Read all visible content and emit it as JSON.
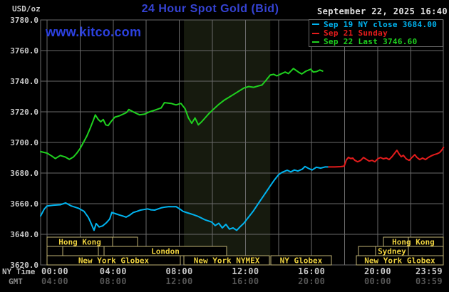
{
  "header": {
    "title": "24 Hour Spot Gold (Bid)",
    "unit_label": "USD/oz",
    "datetime": "September 22, 2025 16:40",
    "watermark": "www.kitco.com"
  },
  "legend": {
    "entries": [
      {
        "name": "sep-19-ny-close",
        "color": "#00b4f0",
        "label": "Sep 19 NY close 3684.00"
      },
      {
        "name": "sep-21-sunday",
        "color": "#e41c1c",
        "label": "Sep 21 Sunday"
      },
      {
        "name": "sep-22-last",
        "color": "#1fd11f",
        "label": "Sep 22 Last 3746.60"
      }
    ]
  },
  "axes": {
    "ny_time_label": "NY Time",
    "gmt_label": "GMT"
  },
  "chart_data": {
    "type": "line",
    "title": "24 Hour Spot Gold (Bid)",
    "ylabel": "USD/oz",
    "grid": true,
    "colors": {
      "gridline": "#6a6a6a",
      "plot_border": "#6a6a6a",
      "band": "#161a0e",
      "session_border": "#bfb274",
      "session_text": "#eed23f",
      "session_fill": "#000000"
    },
    "y_axis": {
      "min": 3620,
      "max": 3780,
      "step": 20,
      "ticks": [
        {
          "value": 3780,
          "label": "3780.0"
        },
        {
          "value": 3760,
          "label": "3760.0"
        },
        {
          "value": 3740,
          "label": "3740.0"
        },
        {
          "value": 3720,
          "label": "3720.0"
        },
        {
          "value": 3700,
          "label": "3700.0"
        },
        {
          "value": 3680,
          "label": "3680.0"
        },
        {
          "value": 3660,
          "label": "3660.0"
        },
        {
          "value": 3640,
          "label": "3640.0"
        },
        {
          "value": 3620,
          "label": "3620.0"
        }
      ]
    },
    "x_axis": {
      "range_hours": [
        -0.39,
        23.983
      ],
      "gridline_step_hours": 2,
      "ticks": [
        {
          "t": 0,
          "ny": "00:00",
          "gmt": "04:00"
        },
        {
          "t": 4,
          "ny": "04:00",
          "gmt": "08:00"
        },
        {
          "t": 8,
          "ny": "08:00",
          "gmt": "12:00"
        },
        {
          "t": 12,
          "ny": "12:00",
          "gmt": "16:00"
        },
        {
          "t": 16,
          "ny": "16:00",
          "gmt": "20:00"
        },
        {
          "t": 20,
          "ny": "20:00",
          "gmt": "00:00"
        },
        {
          "t": 23.983,
          "ny": "23:59",
          "gmt": "03:59"
        }
      ]
    },
    "nymex_session_band": {
      "start_hour": 8.28,
      "end_hour": 13.5
    },
    "series": [
      {
        "name": "Sep 19 NY close",
        "close": 3684.0,
        "color": "#00b4f0",
        "points": [
          [
            -0.39,
            3652
          ],
          [
            -0.17,
            3656.5
          ],
          [
            0,
            3658.5
          ],
          [
            0.4,
            3659
          ],
          [
            0.8,
            3659.3
          ],
          [
            1.12,
            3660.5
          ],
          [
            1.47,
            3658.5
          ],
          [
            1.9,
            3657
          ],
          [
            2.24,
            3655
          ],
          [
            2.5,
            3651
          ],
          [
            2.63,
            3648
          ],
          [
            2.84,
            3642.6
          ],
          [
            2.97,
            3647
          ],
          [
            3.15,
            3644.8
          ],
          [
            3.36,
            3645.5
          ],
          [
            3.58,
            3647.5
          ],
          [
            3.79,
            3650
          ],
          [
            3.92,
            3654.3
          ],
          [
            4.14,
            3653.5
          ],
          [
            4.35,
            3652.7
          ],
          [
            4.57,
            3652
          ],
          [
            4.78,
            3651.2
          ],
          [
            5.0,
            3652.5
          ],
          [
            5.22,
            3654.3
          ],
          [
            5.43,
            3655
          ],
          [
            5.65,
            3655.8
          ],
          [
            5.86,
            3656.2
          ],
          [
            6.08,
            3656.6
          ],
          [
            6.29,
            3656
          ],
          [
            6.51,
            3655.8
          ],
          [
            6.72,
            3656.6
          ],
          [
            6.94,
            3657.4
          ],
          [
            7.16,
            3657.8
          ],
          [
            7.37,
            3658.1
          ],
          [
            7.59,
            3658
          ],
          [
            7.8,
            3658.1
          ],
          [
            8.02,
            3656.6
          ],
          [
            8.23,
            3655
          ],
          [
            8.45,
            3654.2
          ],
          [
            8.66,
            3653.5
          ],
          [
            8.88,
            3652.7
          ],
          [
            9.09,
            3651.9
          ],
          [
            9.31,
            3650.8
          ],
          [
            9.53,
            3649.6
          ],
          [
            9.74,
            3648.8
          ],
          [
            9.96,
            3648
          ],
          [
            10.17,
            3645.7
          ],
          [
            10.39,
            3647.2
          ],
          [
            10.6,
            3644.2
          ],
          [
            10.82,
            3646.5
          ],
          [
            11.03,
            3643.4
          ],
          [
            11.25,
            3644.2
          ],
          [
            11.47,
            3642.6
          ],
          [
            11.68,
            3645
          ],
          [
            11.9,
            3647.2
          ],
          [
            12.11,
            3650.2
          ],
          [
            12.46,
            3655
          ],
          [
            12.8,
            3660.5
          ],
          [
            13.15,
            3666
          ],
          [
            13.49,
            3671.5
          ],
          [
            13.75,
            3675.5
          ],
          [
            14.01,
            3679
          ],
          [
            14.22,
            3680.5
          ],
          [
            14.52,
            3681.8
          ],
          [
            14.74,
            3680.8
          ],
          [
            14.96,
            3682
          ],
          [
            15.17,
            3681.3
          ],
          [
            15.43,
            3682.5
          ],
          [
            15.6,
            3684.3
          ],
          [
            15.82,
            3683
          ],
          [
            16.03,
            3682
          ],
          [
            16.29,
            3683.8
          ],
          [
            16.55,
            3683.2
          ],
          [
            16.81,
            3684
          ],
          [
            17.03,
            3684
          ]
        ]
      },
      {
        "name": "Sep 21 Sunday",
        "color": "#e41c1c",
        "points": [
          [
            17.03,
            3684
          ],
          [
            17.4,
            3684
          ],
          [
            17.76,
            3684.2
          ],
          [
            17.97,
            3684.5
          ],
          [
            18.1,
            3688.5
          ],
          [
            18.23,
            3690.3
          ],
          [
            18.36,
            3689.5
          ],
          [
            18.49,
            3689.8
          ],
          [
            18.62,
            3688.3
          ],
          [
            18.79,
            3687.4
          ],
          [
            18.97,
            3688.3
          ],
          [
            19.14,
            3690.2
          ],
          [
            19.31,
            3689
          ],
          [
            19.48,
            3687.8
          ],
          [
            19.66,
            3688.3
          ],
          [
            19.83,
            3687.4
          ],
          [
            20.0,
            3689.3
          ],
          [
            20.17,
            3690.2
          ],
          [
            20.34,
            3689.3
          ],
          [
            20.52,
            3689.8
          ],
          [
            20.69,
            3688.8
          ],
          [
            20.86,
            3690.7
          ],
          [
            20.99,
            3692.5
          ],
          [
            21.16,
            3694.9
          ],
          [
            21.29,
            3692.5
          ],
          [
            21.42,
            3690.7
          ],
          [
            21.55,
            3691.6
          ],
          [
            21.72,
            3689.3
          ],
          [
            21.9,
            3688.3
          ],
          [
            22.07,
            3690.2
          ],
          [
            22.24,
            3692
          ],
          [
            22.37,
            3690.2
          ],
          [
            22.54,
            3688.8
          ],
          [
            22.71,
            3689.8
          ],
          [
            22.89,
            3688.8
          ],
          [
            23.06,
            3690.2
          ],
          [
            23.23,
            3691.2
          ],
          [
            23.4,
            3692
          ],
          [
            23.57,
            3692.5
          ],
          [
            23.74,
            3693.4
          ],
          [
            23.87,
            3695
          ],
          [
            23.98,
            3696.8
          ]
        ]
      },
      {
        "name": "Sep 22",
        "last": 3746.6,
        "color": "#1fd11f",
        "points": [
          [
            -0.39,
            3694
          ],
          [
            0,
            3693
          ],
          [
            0.3,
            3691
          ],
          [
            0.5,
            3689.5
          ],
          [
            0.8,
            3691.5
          ],
          [
            1.1,
            3690.5
          ],
          [
            1.35,
            3689
          ],
          [
            1.6,
            3690.5
          ],
          [
            1.8,
            3693
          ],
          [
            2.0,
            3696
          ],
          [
            2.2,
            3700
          ],
          [
            2.4,
            3704
          ],
          [
            2.6,
            3709
          ],
          [
            2.8,
            3714.5
          ],
          [
            2.92,
            3718
          ],
          [
            3.1,
            3715
          ],
          [
            3.25,
            3713.5
          ],
          [
            3.4,
            3715
          ],
          [
            3.55,
            3711.5
          ],
          [
            3.7,
            3711
          ],
          [
            3.9,
            3714
          ],
          [
            4.1,
            3716.5
          ],
          [
            4.4,
            3717.5
          ],
          [
            4.8,
            3719.5
          ],
          [
            4.95,
            3721.5
          ],
          [
            5.3,
            3719.5
          ],
          [
            5.6,
            3718
          ],
          [
            5.9,
            3718.5
          ],
          [
            6.2,
            3720
          ],
          [
            6.5,
            3721
          ],
          [
            6.9,
            3722.5
          ],
          [
            7.1,
            3726
          ],
          [
            7.5,
            3725.5
          ],
          [
            7.8,
            3724.5
          ],
          [
            8.1,
            3725.5
          ],
          [
            8.35,
            3722
          ],
          [
            8.55,
            3716
          ],
          [
            8.75,
            3712.5
          ],
          [
            8.95,
            3716
          ],
          [
            9.15,
            3711.5
          ],
          [
            9.35,
            3713.5
          ],
          [
            9.6,
            3716.5
          ],
          [
            9.8,
            3719
          ],
          [
            10.1,
            3722
          ],
          [
            10.4,
            3725
          ],
          [
            10.7,
            3727.5
          ],
          [
            11.0,
            3729.5
          ],
          [
            11.3,
            3731.5
          ],
          [
            11.6,
            3733.5
          ],
          [
            11.9,
            3735.5
          ],
          [
            12.2,
            3736.5
          ],
          [
            12.5,
            3736
          ],
          [
            12.8,
            3737
          ],
          [
            13.0,
            3737.5
          ],
          [
            13.2,
            3740
          ],
          [
            13.5,
            3744
          ],
          [
            13.7,
            3744.5
          ],
          [
            13.9,
            3743.5
          ],
          [
            14.1,
            3744.5
          ],
          [
            14.4,
            3746
          ],
          [
            14.6,
            3745
          ],
          [
            14.9,
            3748.3
          ],
          [
            15.2,
            3746
          ],
          [
            15.4,
            3744.7
          ],
          [
            15.65,
            3746.5
          ],
          [
            15.95,
            3747.8
          ],
          [
            16.1,
            3746
          ],
          [
            16.3,
            3746.3
          ],
          [
            16.5,
            3747.3
          ],
          [
            16.67,
            3746.6
          ]
        ]
      }
    ],
    "sessions": {
      "rows": [
        {
          "boxes": [
            {
              "start": 0,
              "end": 3.97,
              "label": "Hong Kong"
            },
            {
              "start": 3.97,
              "end": 5.47,
              "label": ""
            },
            {
              "start": 20.34,
              "end": 23.97,
              "label": "Hong Kong",
              "divider": 21.85
            }
          ]
        },
        {
          "boxes": [
            {
              "start": 0,
              "end": 0.95,
              "label": ""
            },
            {
              "start": 0.95,
              "end": 3.1,
              "label": ""
            },
            {
              "start": 3.1,
              "end": 3.45,
              "label": ""
            },
            {
              "start": 3.45,
              "end": 10.86,
              "label": "London"
            },
            {
              "start": 18.84,
              "end": 19.87,
              "label": ""
            },
            {
              "start": 19.87,
              "end": 21.85,
              "label": "Sydney"
            },
            {
              "start": 21.85,
              "end": 23.97,
              "label": ""
            }
          ]
        },
        {
          "boxes": [
            {
              "start": 0,
              "end": 8.06,
              "label": "New York Globex"
            },
            {
              "start": 8.28,
              "end": 13.45,
              "label": "New York NYMEX"
            },
            {
              "start": 13.53,
              "end": 17.2,
              "label": "NY Globex"
            },
            {
              "start": 18.7,
              "end": 23.97,
              "label": "New York Globex"
            }
          ]
        }
      ]
    }
  }
}
